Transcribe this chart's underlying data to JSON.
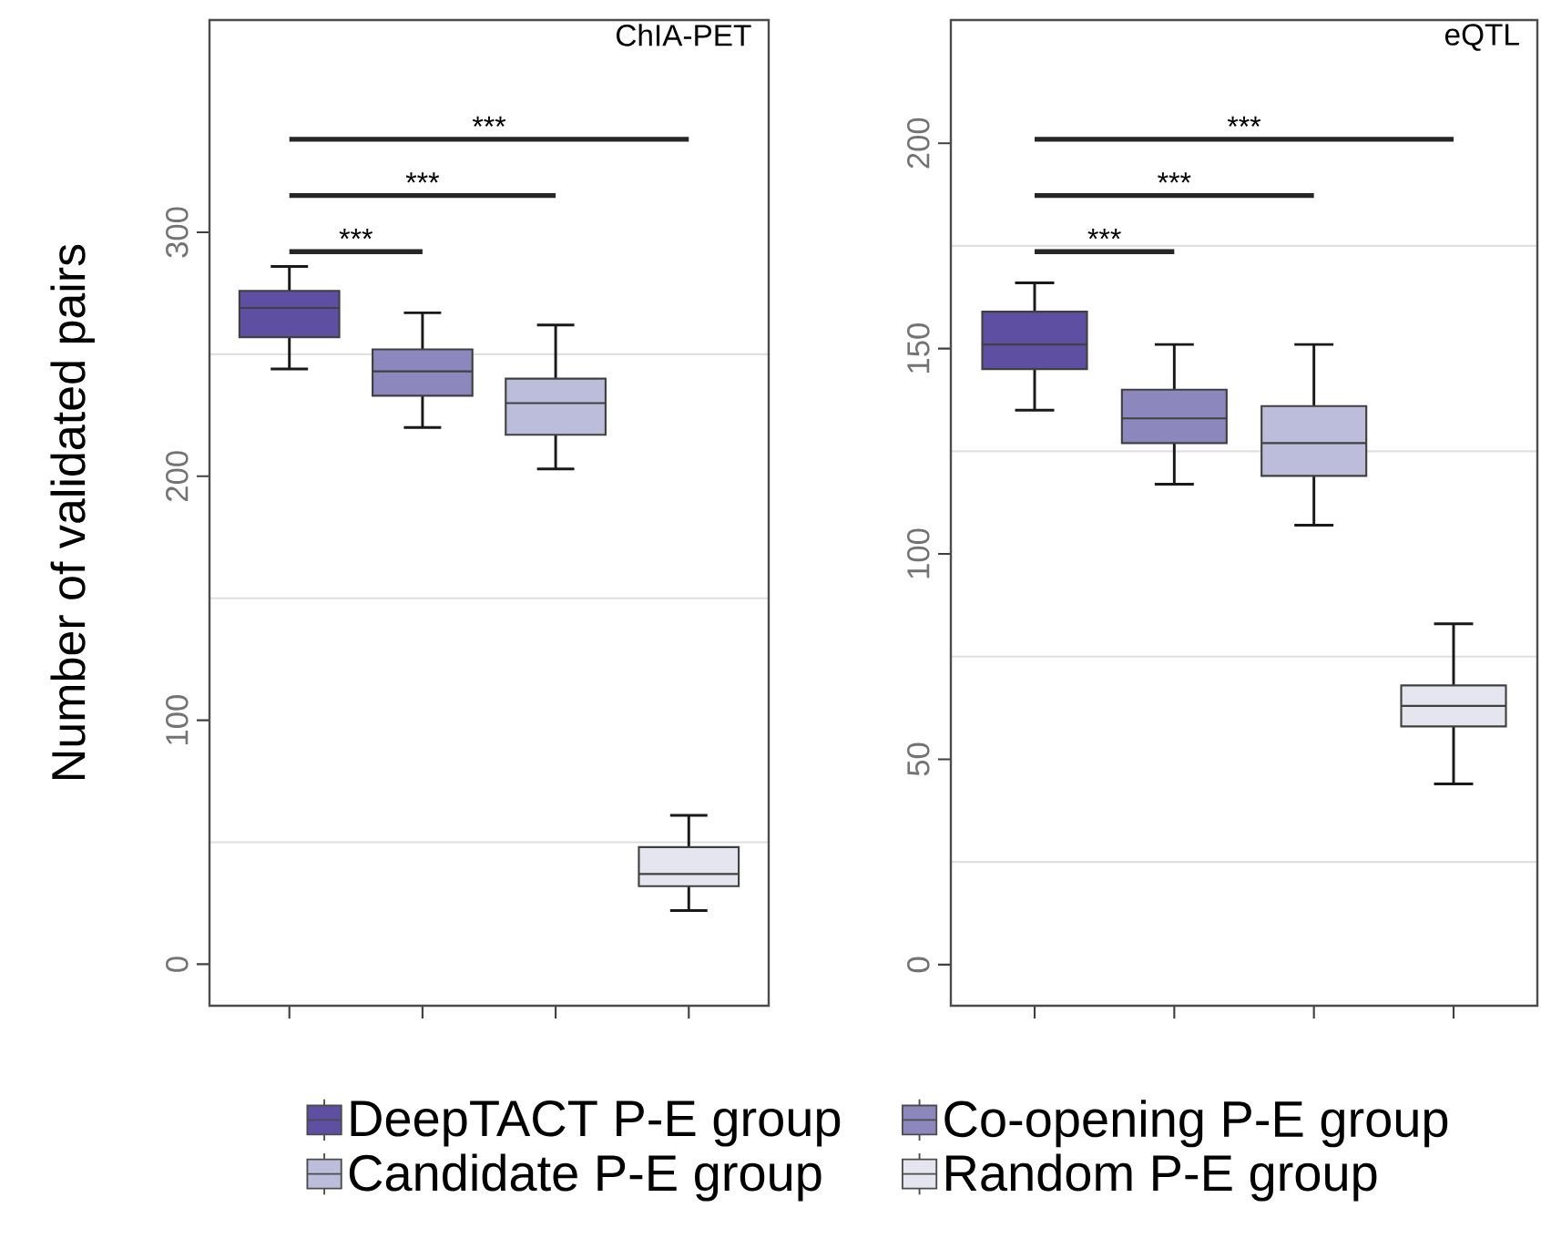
{
  "chart_data": [
    {
      "type": "box",
      "title": "ChIA-PET",
      "ylabel": "Number of validated pairs",
      "categories": [
        null,
        null,
        null,
        null
      ],
      "ylim": [
        -17,
        387
      ],
      "yticks": [
        0,
        100,
        200,
        300
      ],
      "grid": "y",
      "legend": "bottom",
      "tick_labels": "y",
      "series": [
        {
          "name": "DeepTACT P-E group",
          "color": "#5e4fa2",
          "boxes": [
            {
              "low": 244,
              "q1": 257,
              "median": 269,
              "q3": 276,
              "high": 286
            },
            null,
            null,
            null
          ]
        },
        {
          "name": "Co-opening P-E group",
          "color": "#8c88bd",
          "boxes": [
            null,
            {
              "low": 220,
              "q1": 233,
              "median": 243,
              "q3": 252,
              "high": 267
            },
            null,
            null
          ]
        },
        {
          "name": "Candidate P-E group",
          "color": "#bcbcdb",
          "boxes": [
            null,
            null,
            {
              "low": 203,
              "q1": 217,
              "median": 230,
              "q3": 240,
              "high": 262
            },
            null
          ]
        },
        {
          "name": "Random P-E group",
          "color": "#e5e5ef",
          "boxes": [
            null,
            null,
            null,
            {
              "low": 22,
              "q1": 32,
              "median": 37,
              "q3": 48,
              "high": 61
            }
          ]
        }
      ],
      "annotations": [
        "***",
        "***",
        "***"
      ]
    },
    {
      "type": "box",
      "title": "eQTL",
      "categories": [
        null,
        null,
        null,
        null
      ],
      "ylim": [
        -10,
        230
      ],
      "yticks": [
        0,
        50,
        100,
        150,
        200
      ],
      "grid": "y",
      "tick_labels": "y",
      "series": [
        {
          "color": "#5e4fa2",
          "boxes": [
            {
              "low": 135,
              "q1": 145,
              "median": 151,
              "q3": 159,
              "high": 166
            },
            null,
            null,
            null
          ]
        },
        {
          "color": "#8c88bd",
          "boxes": [
            null,
            {
              "low": 117,
              "q1": 127,
              "median": 133,
              "q3": 140,
              "high": 151
            },
            null,
            null
          ]
        },
        {
          "color": "#bcbcdb",
          "boxes": [
            null,
            null,
            {
              "low": 107,
              "q1": 119,
              "median": 127,
              "q3": 136,
              "high": 151
            },
            null
          ]
        },
        {
          "color": "#e5e5ef",
          "boxes": [
            null,
            null,
            null,
            {
              "low": 44,
              "q1": 58,
              "median": 63,
              "q3": 68,
              "high": 83
            }
          ]
        }
      ],
      "annotations": [
        "***",
        "***",
        "***"
      ]
    }
  ]
}
